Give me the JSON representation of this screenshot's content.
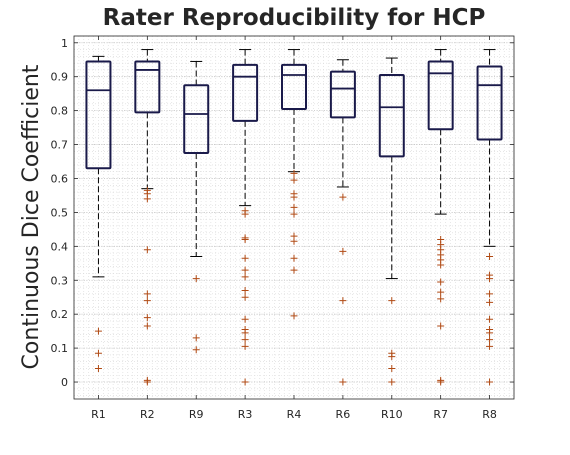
{
  "colors": {
    "box": "#1a1a4a",
    "whisker": "#000000",
    "outlier": "#b04a14",
    "axis": "#262626",
    "grid": "#d8d8d8"
  },
  "chart_data": {
    "type": "box",
    "title": "Rater Reproducibility for HCP",
    "xlabel": "",
    "ylabel": "Continuous Dice Coefficient",
    "ylim": [
      -0.05,
      1.02
    ],
    "yticks": [
      0,
      0.1,
      0.2,
      0.3,
      0.4,
      0.5,
      0.6,
      0.7,
      0.8,
      0.9,
      1
    ],
    "ytick_labels": [
      "0",
      "0.1",
      "0.2",
      "0.3",
      "0.4",
      "0.5",
      "0.6",
      "0.7",
      "0.8",
      "0.9",
      "1"
    ],
    "grid": true,
    "categories": [
      "R1",
      "R2",
      "R9",
      "R3",
      "R4",
      "R6",
      "R10",
      "R7",
      "R8"
    ],
    "boxes": [
      {
        "label": "R1",
        "whislo": 0.31,
        "q1": 0.63,
        "med": 0.86,
        "q3": 0.945,
        "whishi": 0.96,
        "outliers": [
          0.15,
          0.085,
          0.04
        ]
      },
      {
        "label": "R2",
        "whislo": 0.57,
        "q1": 0.795,
        "med": 0.92,
        "q3": 0.945,
        "whishi": 0.98,
        "outliers": [
          0.565,
          0.555,
          0.54,
          0.39,
          0.26,
          0.24,
          0.19,
          0.165,
          0.005,
          0.0
        ]
      },
      {
        "label": "R9",
        "whislo": 0.37,
        "q1": 0.675,
        "med": 0.79,
        "q3": 0.875,
        "whishi": 0.945,
        "outliers": [
          0.305,
          0.13,
          0.095
        ]
      },
      {
        "label": "R3",
        "whislo": 0.52,
        "q1": 0.77,
        "med": 0.9,
        "q3": 0.935,
        "whishi": 0.98,
        "outliers": [
          0.505,
          0.495,
          0.425,
          0.42,
          0.365,
          0.33,
          0.31,
          0.27,
          0.25,
          0.185,
          0.155,
          0.145,
          0.125,
          0.105,
          0.0
        ]
      },
      {
        "label": "R4",
        "whislo": 0.62,
        "q1": 0.805,
        "med": 0.905,
        "q3": 0.935,
        "whishi": 0.98,
        "outliers": [
          0.615,
          0.595,
          0.555,
          0.545,
          0.515,
          0.495,
          0.43,
          0.415,
          0.365,
          0.33,
          0.195
        ]
      },
      {
        "label": "R6",
        "whislo": 0.575,
        "q1": 0.78,
        "med": 0.865,
        "q3": 0.915,
        "whishi": 0.95,
        "outliers": [
          0.545,
          0.385,
          0.24,
          0.0
        ]
      },
      {
        "label": "R10",
        "whislo": 0.305,
        "q1": 0.665,
        "med": 0.81,
        "q3": 0.905,
        "whishi": 0.955,
        "outliers": [
          0.24,
          0.085,
          0.075,
          0.04,
          0.0
        ]
      },
      {
        "label": "R7",
        "whislo": 0.495,
        "q1": 0.745,
        "med": 0.91,
        "q3": 0.945,
        "whishi": 0.98,
        "outliers": [
          0.42,
          0.405,
          0.39,
          0.375,
          0.36,
          0.345,
          0.295,
          0.265,
          0.245,
          0.165,
          0.005,
          0.0
        ]
      },
      {
        "label": "R8",
        "whislo": 0.4,
        "q1": 0.715,
        "med": 0.875,
        "q3": 0.93,
        "whishi": 0.98,
        "outliers": [
          0.37,
          0.315,
          0.305,
          0.26,
          0.235,
          0.185,
          0.155,
          0.145,
          0.125,
          0.105,
          0.0
        ]
      }
    ]
  }
}
